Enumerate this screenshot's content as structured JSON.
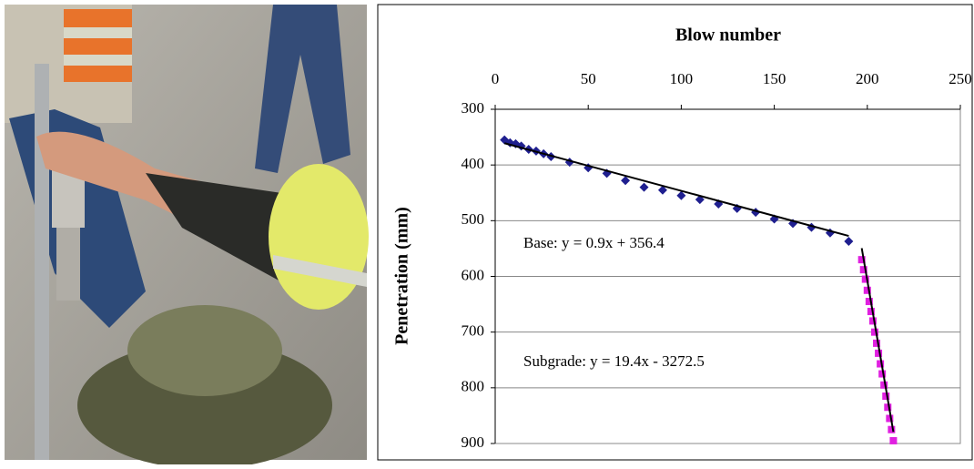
{
  "chart_data": {
    "type": "scatter",
    "title": "Blow number",
    "y_label": "Penetration (mm)",
    "xlim": [
      0,
      250
    ],
    "xticks": [
      0,
      50,
      100,
      150,
      200,
      250
    ],
    "x_axis_position": "top",
    "ylim": [
      300,
      900
    ],
    "yticks": [
      300,
      400,
      500,
      600,
      700,
      800,
      900
    ],
    "y_inverted": true,
    "grid": true,
    "series": [
      {
        "name": "Base",
        "color": "#1f1f8f",
        "marker": "diamond",
        "x": [
          5,
          8,
          11,
          14,
          18,
          22,
          26,
          30,
          40,
          50,
          60,
          70,
          80,
          90,
          100,
          110,
          120,
          130,
          140,
          150,
          160,
          170,
          180,
          190
        ],
        "values": [
          355,
          360,
          362,
          366,
          372,
          375,
          380,
          385,
          395,
          405,
          415,
          428,
          440,
          445,
          455,
          462,
          470,
          478,
          485,
          497,
          505,
          512,
          522,
          537
        ],
        "trendline": {
          "slope": 0.9,
          "intercept": 356.4
        }
      },
      {
        "name": "Subgrade",
        "color": "#e020e0",
        "marker": "square",
        "x": [
          197,
          198,
          199,
          200,
          201,
          202,
          203,
          204,
          205,
          206,
          207,
          208,
          209,
          210,
          211,
          212,
          213,
          214
        ],
        "values": [
          570,
          588,
          605,
          625,
          645,
          663,
          680,
          700,
          720,
          738,
          757,
          775,
          795,
          815,
          835,
          855,
          875,
          895
        ],
        "trendline": {
          "slope": 19.4,
          "intercept": -3272.5
        }
      }
    ],
    "annotations": [
      "Base:   y = 0.9x + 356.4",
      "Subgrade:   y = 19.4x - 3272.5"
    ]
  }
}
